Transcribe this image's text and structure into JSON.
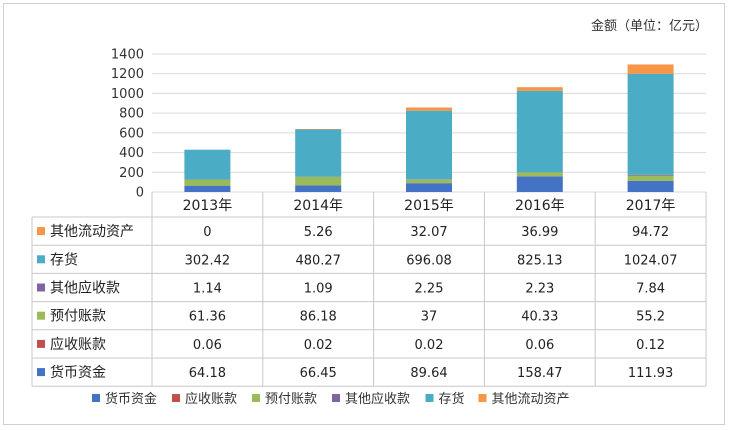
{
  "chart_data": {
    "type": "bar",
    "stacked": true,
    "unit_label": "金额（单位：亿元）",
    "categories": [
      "2013年",
      "2014年",
      "2015年",
      "2016年",
      "2017年"
    ],
    "ylim": [
      0,
      1400
    ],
    "yticks": [
      0,
      200,
      400,
      600,
      800,
      1000,
      1200,
      1400
    ],
    "grid": true,
    "legend_position": "bottom",
    "series": [
      {
        "name": "货币资金",
        "color": "#4472C4",
        "values": [
          64.18,
          66.45,
          89.64,
          158.47,
          111.93
        ]
      },
      {
        "name": "应收账款",
        "color": "#C0504D",
        "values": [
          0.06,
          0.02,
          0.02,
          0.06,
          0.12
        ]
      },
      {
        "name": "预付账款",
        "color": "#9BBB59",
        "values": [
          61.36,
          86.18,
          37,
          40.33,
          55.2
        ]
      },
      {
        "name": "其他应收款",
        "color": "#8064A2",
        "values": [
          1.14,
          1.09,
          2.25,
          2.23,
          7.84
        ]
      },
      {
        "name": "存货",
        "color": "#4BACC6",
        "values": [
          302.42,
          480.27,
          696.08,
          825.13,
          1024.07
        ]
      },
      {
        "name": "其他流动资产",
        "color": "#F79646",
        "values": [
          0,
          5.26,
          32.07,
          36.99,
          94.72
        ]
      }
    ],
    "table_rows_order": [
      "其他流动资产",
      "存货",
      "其他应收款",
      "预付账款",
      "应收账款",
      "货币资金"
    ]
  }
}
